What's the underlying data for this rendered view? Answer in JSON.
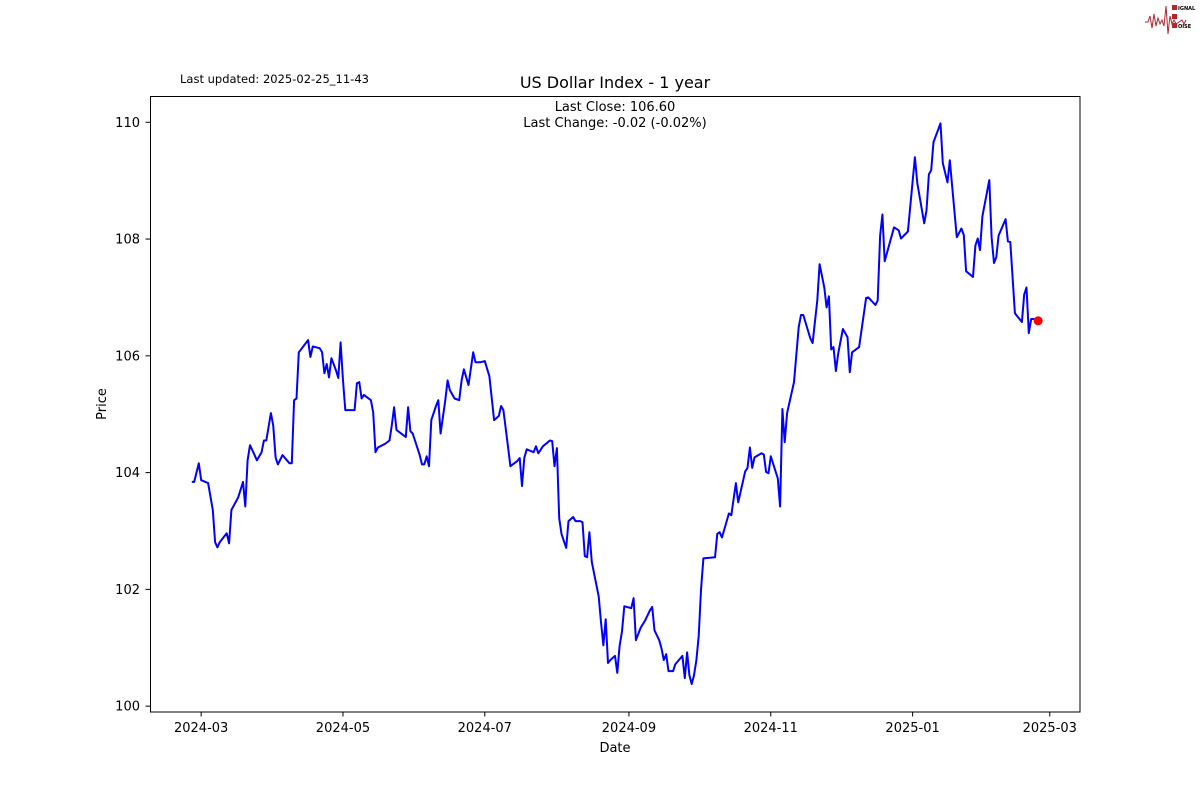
{
  "header": {
    "last_updated": "Last updated: 2025-02-25_11-43",
    "logo_text": "SIGNAL 2 NOISE"
  },
  "chart_data": {
    "type": "line",
    "title": "US Dollar Index - 1 year",
    "annotation_close": "Last Close: 106.60",
    "annotation_change": "Last Change: -0.02 (-0.02%)",
    "xlabel": "Date",
    "ylabel": "Price",
    "xlim": [
      "2024-02-08",
      "2025-03-14"
    ],
    "ylim": [
      99.9,
      110.45
    ],
    "grid": false,
    "x_ticks": [
      "2024-03",
      "2024-05",
      "2024-07",
      "2024-09",
      "2024-11",
      "2025-01",
      "2025-03"
    ],
    "y_ticks": [
      100,
      102,
      104,
      106,
      108,
      110
    ],
    "line_color": "#0000ff",
    "marker_color": "#ff0000",
    "last_point": [
      "2025-02-24",
      106.6
    ],
    "points": [
      [
        "2024-02-26",
        103.84
      ],
      [
        "2024-02-27",
        103.84
      ],
      [
        "2024-02-29",
        104.16
      ],
      [
        "2024-03-01",
        103.87
      ],
      [
        "2024-03-04",
        103.82
      ],
      [
        "2024-03-06",
        103.36
      ],
      [
        "2024-03-07",
        102.81
      ],
      [
        "2024-03-08",
        102.72
      ],
      [
        "2024-03-09",
        102.81
      ],
      [
        "2024-03-12",
        102.96
      ],
      [
        "2024-03-13",
        102.79
      ],
      [
        "2024-03-14",
        103.36
      ],
      [
        "2024-03-17",
        103.58
      ],
      [
        "2024-03-19",
        103.84
      ],
      [
        "2024-03-20",
        103.42
      ],
      [
        "2024-03-21",
        104.21
      ],
      [
        "2024-03-22",
        104.47
      ],
      [
        "2024-03-24",
        104.3
      ],
      [
        "2024-03-25",
        104.21
      ],
      [
        "2024-03-27",
        104.35
      ],
      [
        "2024-03-28",
        104.55
      ],
      [
        "2024-03-29",
        104.55
      ],
      [
        "2024-03-31",
        105.02
      ],
      [
        "2024-04-01",
        104.81
      ],
      [
        "2024-04-02",
        104.26
      ],
      [
        "2024-04-03",
        104.14
      ],
      [
        "2024-04-05",
        104.3
      ],
      [
        "2024-04-08",
        104.16
      ],
      [
        "2024-04-09",
        104.16
      ],
      [
        "2024-04-10",
        105.24
      ],
      [
        "2024-04-11",
        105.27
      ],
      [
        "2024-04-12",
        106.06
      ],
      [
        "2024-04-16",
        106.27
      ],
      [
        "2024-04-17",
        105.98
      ],
      [
        "2024-04-18",
        106.16
      ],
      [
        "2024-04-21",
        106.13
      ],
      [
        "2024-04-22",
        106.06
      ],
      [
        "2024-04-23",
        105.7
      ],
      [
        "2024-04-24",
        105.86
      ],
      [
        "2024-04-25",
        105.63
      ],
      [
        "2024-04-26",
        105.96
      ],
      [
        "2024-04-28",
        105.75
      ],
      [
        "2024-04-29",
        105.62
      ],
      [
        "2024-04-30",
        106.23
      ],
      [
        "2024-05-01",
        105.58
      ],
      [
        "2024-05-02",
        105.07
      ],
      [
        "2024-05-04",
        105.07
      ],
      [
        "2024-05-06",
        105.07
      ],
      [
        "2024-05-07",
        105.53
      ],
      [
        "2024-05-08",
        105.55
      ],
      [
        "2024-05-09",
        105.27
      ],
      [
        "2024-05-10",
        105.33
      ],
      [
        "2024-05-13",
        105.24
      ],
      [
        "2024-05-14",
        105.03
      ],
      [
        "2024-05-15",
        104.35
      ],
      [
        "2024-05-16",
        104.43
      ],
      [
        "2024-05-19",
        104.49
      ],
      [
        "2024-05-21",
        104.55
      ],
      [
        "2024-05-22",
        104.81
      ],
      [
        "2024-05-23",
        105.12
      ],
      [
        "2024-05-24",
        104.73
      ],
      [
        "2024-05-27",
        104.64
      ],
      [
        "2024-05-28",
        104.61
      ],
      [
        "2024-05-29",
        105.12
      ],
      [
        "2024-05-30",
        104.71
      ],
      [
        "2024-05-31",
        104.67
      ],
      [
        "2024-06-03",
        104.3
      ],
      [
        "2024-06-04",
        104.14
      ],
      [
        "2024-06-05",
        104.14
      ],
      [
        "2024-06-06",
        104.28
      ],
      [
        "2024-06-07",
        104.11
      ],
      [
        "2024-06-08",
        104.9
      ],
      [
        "2024-06-10",
        105.14
      ],
      [
        "2024-06-11",
        105.24
      ],
      [
        "2024-06-12",
        104.67
      ],
      [
        "2024-06-14",
        105.24
      ],
      [
        "2024-06-15",
        105.58
      ],
      [
        "2024-06-16",
        105.41
      ],
      [
        "2024-06-18",
        105.27
      ],
      [
        "2024-06-20",
        105.24
      ],
      [
        "2024-06-21",
        105.58
      ],
      [
        "2024-06-22",
        105.77
      ],
      [
        "2024-06-24",
        105.5
      ],
      [
        "2024-06-26",
        106.06
      ],
      [
        "2024-06-27",
        105.89
      ],
      [
        "2024-06-29",
        105.89
      ],
      [
        "2024-07-01",
        105.91
      ],
      [
        "2024-07-03",
        105.65
      ],
      [
        "2024-07-05",
        104.9
      ],
      [
        "2024-07-07",
        104.97
      ],
      [
        "2024-07-08",
        105.14
      ],
      [
        "2024-07-09",
        105.07
      ],
      [
        "2024-07-11",
        104.43
      ],
      [
        "2024-07-12",
        104.11
      ],
      [
        "2024-07-15",
        104.2
      ],
      [
        "2024-07-16",
        104.25
      ],
      [
        "2024-07-17",
        103.77
      ],
      [
        "2024-07-18",
        104.25
      ],
      [
        "2024-07-19",
        104.4
      ],
      [
        "2024-07-22",
        104.35
      ],
      [
        "2024-07-23",
        104.45
      ],
      [
        "2024-07-24",
        104.33
      ],
      [
        "2024-07-26",
        104.45
      ],
      [
        "2024-07-29",
        104.55
      ],
      [
        "2024-07-30",
        104.54
      ],
      [
        "2024-07-31",
        104.11
      ],
      [
        "2024-08-01",
        104.42
      ],
      [
        "2024-08-02",
        103.22
      ],
      [
        "2024-08-03",
        102.95
      ],
      [
        "2024-08-05",
        102.71
      ],
      [
        "2024-08-06",
        103.17
      ],
      [
        "2024-08-08",
        103.24
      ],
      [
        "2024-08-09",
        103.17
      ],
      [
        "2024-08-11",
        103.17
      ],
      [
        "2024-08-12",
        103.15
      ],
      [
        "2024-08-13",
        102.57
      ],
      [
        "2024-08-14",
        102.55
      ],
      [
        "2024-08-15",
        102.98
      ],
      [
        "2024-08-16",
        102.47
      ],
      [
        "2024-08-19",
        101.88
      ],
      [
        "2024-08-20",
        101.44
      ],
      [
        "2024-08-21",
        101.04
      ],
      [
        "2024-08-22",
        101.49
      ],
      [
        "2024-08-23",
        100.74
      ],
      [
        "2024-08-24",
        100.79
      ],
      [
        "2024-08-26",
        100.86
      ],
      [
        "2024-08-27",
        100.57
      ],
      [
        "2024-08-28",
        101.03
      ],
      [
        "2024-08-29",
        101.28
      ],
      [
        "2024-08-30",
        101.71
      ],
      [
        "2024-09-02",
        101.68
      ],
      [
        "2024-09-03",
        101.85
      ],
      [
        "2024-09-04",
        101.13
      ],
      [
        "2024-09-06",
        101.34
      ],
      [
        "2024-09-08",
        101.47
      ],
      [
        "2024-09-10",
        101.64
      ],
      [
        "2024-09-11",
        101.7
      ],
      [
        "2024-09-12",
        101.3
      ],
      [
        "2024-09-14",
        101.13
      ],
      [
        "2024-09-15",
        100.99
      ],
      [
        "2024-09-16",
        100.79
      ],
      [
        "2024-09-17",
        100.89
      ],
      [
        "2024-09-18",
        100.6
      ],
      [
        "2024-09-20",
        100.6
      ],
      [
        "2024-09-21",
        100.72
      ],
      [
        "2024-09-24",
        100.86
      ],
      [
        "2024-09-25",
        100.48
      ],
      [
        "2024-09-26",
        100.92
      ],
      [
        "2024-09-27",
        100.53
      ],
      [
        "2024-09-28",
        100.38
      ],
      [
        "2024-09-29",
        100.53
      ],
      [
        "2024-09-30",
        100.79
      ],
      [
        "2024-10-01",
        101.2
      ],
      [
        "2024-10-02",
        101.99
      ],
      [
        "2024-10-03",
        102.53
      ],
      [
        "2024-10-08",
        102.55
      ],
      [
        "2024-10-09",
        102.95
      ],
      [
        "2024-10-10",
        102.98
      ],
      [
        "2024-10-11",
        102.89
      ],
      [
        "2024-10-14",
        103.3
      ],
      [
        "2024-10-15",
        103.27
      ],
      [
        "2024-10-17",
        103.82
      ],
      [
        "2024-10-18",
        103.49
      ],
      [
        "2024-10-21",
        104.02
      ],
      [
        "2024-10-22",
        104.08
      ],
      [
        "2024-10-23",
        104.43
      ],
      [
        "2024-10-24",
        104.08
      ],
      [
        "2024-10-25",
        104.26
      ],
      [
        "2024-10-28",
        104.33
      ],
      [
        "2024-10-29",
        104.31
      ],
      [
        "2024-10-30",
        104.01
      ],
      [
        "2024-10-31",
        103.99
      ],
      [
        "2024-11-01",
        104.28
      ],
      [
        "2024-11-04",
        103.9
      ],
      [
        "2024-11-05",
        103.42
      ],
      [
        "2024-11-06",
        105.09
      ],
      [
        "2024-11-07",
        104.52
      ],
      [
        "2024-11-08",
        105.02
      ],
      [
        "2024-11-11",
        105.55
      ],
      [
        "2024-11-13",
        106.49
      ],
      [
        "2024-11-14",
        106.7
      ],
      [
        "2024-11-15",
        106.7
      ],
      [
        "2024-11-18",
        106.3
      ],
      [
        "2024-11-19",
        106.22
      ],
      [
        "2024-11-21",
        106.95
      ],
      [
        "2024-11-22",
        107.57
      ],
      [
        "2024-11-24",
        107.17
      ],
      [
        "2024-11-25",
        106.83
      ],
      [
        "2024-11-26",
        107.02
      ],
      [
        "2024-11-27",
        106.11
      ],
      [
        "2024-11-28",
        106.15
      ],
      [
        "2024-11-29",
        105.74
      ],
      [
        "2024-11-30",
        106.04
      ],
      [
        "2024-12-02",
        106.46
      ],
      [
        "2024-12-03",
        106.39
      ],
      [
        "2024-12-04",
        106.32
      ],
      [
        "2024-12-05",
        105.72
      ],
      [
        "2024-12-06",
        106.06
      ],
      [
        "2024-12-09",
        106.15
      ],
      [
        "2024-12-12",
        106.99
      ],
      [
        "2024-12-13",
        107.0
      ],
      [
        "2024-12-16",
        106.87
      ],
      [
        "2024-12-17",
        106.95
      ],
      [
        "2024-12-18",
        108.05
      ],
      [
        "2024-12-19",
        108.42
      ],
      [
        "2024-12-20",
        107.62
      ],
      [
        "2024-12-24",
        108.2
      ],
      [
        "2024-12-26",
        108.15
      ],
      [
        "2024-12-27",
        108.01
      ],
      [
        "2024-12-30",
        108.13
      ],
      [
        "2025-01-02",
        109.4
      ],
      [
        "2025-01-03",
        108.96
      ],
      [
        "2025-01-06",
        108.27
      ],
      [
        "2025-01-07",
        108.49
      ],
      [
        "2025-01-08",
        109.11
      ],
      [
        "2025-01-09",
        109.18
      ],
      [
        "2025-01-10",
        109.66
      ],
      [
        "2025-01-13",
        109.98
      ],
      [
        "2025-01-14",
        109.3
      ],
      [
        "2025-01-16",
        108.97
      ],
      [
        "2025-01-17",
        109.35
      ],
      [
        "2025-01-20",
        108.03
      ],
      [
        "2025-01-22",
        108.18
      ],
      [
        "2025-01-23",
        108.07
      ],
      [
        "2025-01-24",
        107.45
      ],
      [
        "2025-01-27",
        107.35
      ],
      [
        "2025-01-28",
        107.89
      ],
      [
        "2025-01-29",
        108.01
      ],
      [
        "2025-01-30",
        107.81
      ],
      [
        "2025-01-31",
        108.39
      ],
      [
        "2025-02-03",
        109.01
      ],
      [
        "2025-02-04",
        108.03
      ],
      [
        "2025-02-05",
        107.59
      ],
      [
        "2025-02-06",
        107.69
      ],
      [
        "2025-02-07",
        108.06
      ],
      [
        "2025-02-10",
        108.34
      ],
      [
        "2025-02-11",
        107.96
      ],
      [
        "2025-02-12",
        107.95
      ],
      [
        "2025-02-14",
        106.73
      ],
      [
        "2025-02-17",
        106.58
      ],
      [
        "2025-02-18",
        107.05
      ],
      [
        "2025-02-19",
        107.17
      ],
      [
        "2025-02-20",
        106.39
      ],
      [
        "2025-02-21",
        106.63
      ],
      [
        "2025-02-22",
        106.63
      ],
      [
        "2025-02-24",
        106.6
      ]
    ]
  }
}
